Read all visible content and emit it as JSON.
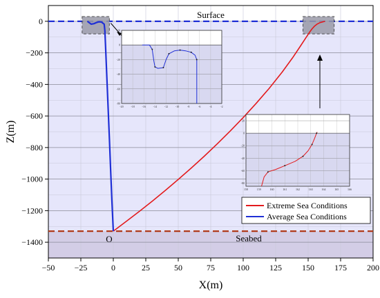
{
  "chart_data": {
    "type": "line",
    "xlabel": "X(m)",
    "ylabel": "Z(m)",
    "xlim": [
      -50,
      200
    ],
    "ylim": [
      -1500,
      100
    ],
    "x_ticks": [
      -50,
      -25,
      0,
      25,
      50,
      75,
      100,
      125,
      150,
      175,
      200
    ],
    "y_ticks": [
      0,
      -200,
      -400,
      -600,
      -800,
      -1000,
      -1200,
      -1400
    ],
    "grid": true,
    "legend_position": "bottom-right",
    "surface": {
      "z": 0,
      "label": "Surface",
      "color": "#1f2fd6"
    },
    "seabed": {
      "z": -1330,
      "label": "Seabed",
      "color": "#b03a1a"
    },
    "origin_label": "O",
    "series": [
      {
        "name": "Extreme Sea Conditions",
        "color": "#e31a1c",
        "x": [
          0,
          10,
          20,
          30,
          40,
          50,
          60,
          70,
          80,
          90,
          100,
          110,
          120,
          130,
          138,
          144,
          148,
          151,
          153,
          155,
          157,
          159,
          161,
          163
        ],
        "y": [
          -1330,
          -1268,
          -1205,
          -1140,
          -1072,
          -1002,
          -930,
          -855,
          -777,
          -695,
          -610,
          -520,
          -425,
          -322,
          -232,
          -158,
          -108,
          -70,
          -48,
          -30,
          -17,
          -9,
          -4,
          0
        ]
      },
      {
        "name": "Average Sea Conditions",
        "color": "#1f2fd6",
        "x": [
          0,
          -1,
          -2,
          -3,
          -4,
          -5,
          -6,
          -6.5,
          -7,
          -8,
          -9,
          -11,
          -13,
          -15,
          -17,
          -19,
          -20
        ],
        "y": [
          -1330,
          -1150,
          -950,
          -750,
          -550,
          -350,
          -150,
          -60,
          -18,
          -12,
          -5,
          -3,
          -8,
          -15,
          -18,
          -6,
          0
        ]
      }
    ],
    "insets": [
      {
        "name": "average-detail",
        "x_ticks": [
          -20,
          -18,
          -16,
          -14,
          -12,
          -10,
          -8,
          -6,
          -4,
          -2
        ],
        "y_ticks": [
          20,
          0,
          -20,
          -40,
          -60,
          -80
        ],
        "xlim": [
          -20,
          -2
        ],
        "ylim": [
          -80,
          20
        ],
        "x": [
          -16.3,
          -15,
          -14.5,
          -14.2,
          -14,
          -13.5,
          -12.5,
          -12,
          -11.5,
          -10.5,
          -9.5,
          -8.5,
          -7.5,
          -6.8,
          -6.5,
          -6.5
        ],
        "y": [
          0,
          0,
          -6,
          -22,
          -30,
          -32,
          -31,
          -20,
          -12,
          -8,
          -7,
          -8,
          -10,
          -14,
          -20,
          -80
        ]
      },
      {
        "name": "extreme-detail",
        "x_ticks": [
          158,
          159,
          160,
          161,
          162,
          163,
          164,
          165,
          166
        ],
        "y_ticks": [
          20,
          0,
          -20,
          -40,
          -60,
          -80
        ],
        "xlim": [
          158,
          166
        ],
        "ylim": [
          -85,
          30
        ],
        "x": [
          159.2,
          159.4,
          159.7,
          160.3,
          161.0,
          161.8,
          162.4,
          162.8,
          163.1,
          163.3,
          163.45,
          163.5
        ],
        "y": [
          -85,
          -70,
          -62,
          -58,
          -52,
          -45,
          -37,
          -28,
          -18,
          -8,
          0,
          2
        ]
      }
    ]
  }
}
